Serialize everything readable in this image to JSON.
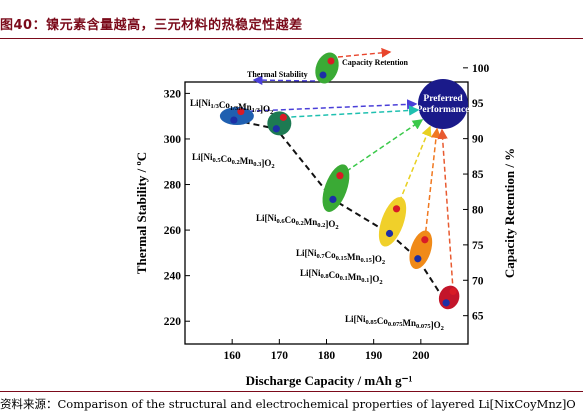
{
  "figure_title": "图40：镍元素含量越高，三元材料的热稳定性越差",
  "source_note": "资料来源：Comparison of the structural and electrochemical properties of layered Li[NixCoyMnz]O",
  "chart_data": {
    "type": "scatter",
    "xlabel": "Discharge Capacity / mAh g⁻¹",
    "ylabel_left": "Thermal Stability / ºC",
    "ylabel_right": "Capacity Retention / %",
    "xlim": [
      150,
      210
    ],
    "xticks": [
      160,
      170,
      180,
      190,
      200
    ],
    "ylim_left": [
      210,
      325
    ],
    "yticks_left": [
      220,
      240,
      260,
      280,
      300,
      320
    ],
    "ylim_right": [
      61,
      98
    ],
    "yticks_right": [
      65,
      70,
      75,
      80,
      85,
      90,
      95,
      100
    ],
    "legend": {
      "thermal": "Thermal Stability",
      "capacity": "Capacity Retention"
    },
    "preferred_label": [
      "Preferred",
      "Performance"
    ],
    "points": [
      {
        "label": "Li[Ni1/3Co1/3Mn1/3]O2",
        "color": "#1f5fb0",
        "x": 161,
        "thermal": 306,
        "retention": 94.5
      },
      {
        "label": "Li[Ni0.5Co0.2Mn0.3]O2",
        "color": "#1d7a52",
        "x": 170,
        "thermal": 298,
        "retention": 95
      },
      {
        "label": "Li[Ni0.6Co0.2Mn0.2]O2",
        "color": "#3aaa35",
        "x": 182,
        "thermal": 266,
        "retention": 87
      },
      {
        "label": "Li[Ni0.7Co0.15Mn0.15]O2",
        "color": "#f0d02a",
        "x": 194,
        "thermal": 252,
        "retention": 82
      },
      {
        "label": "Li[Ni0.8Co0.1Mn0.1]O2",
        "color": "#f08a18",
        "x": 200,
        "thermal": 243,
        "retention": 77
      },
      {
        "label": "Li[Ni0.85Co0.075Mn0.075]O2",
        "color": "#c3152a",
        "x": 206,
        "thermal": 226,
        "retention": 69
      }
    ]
  }
}
